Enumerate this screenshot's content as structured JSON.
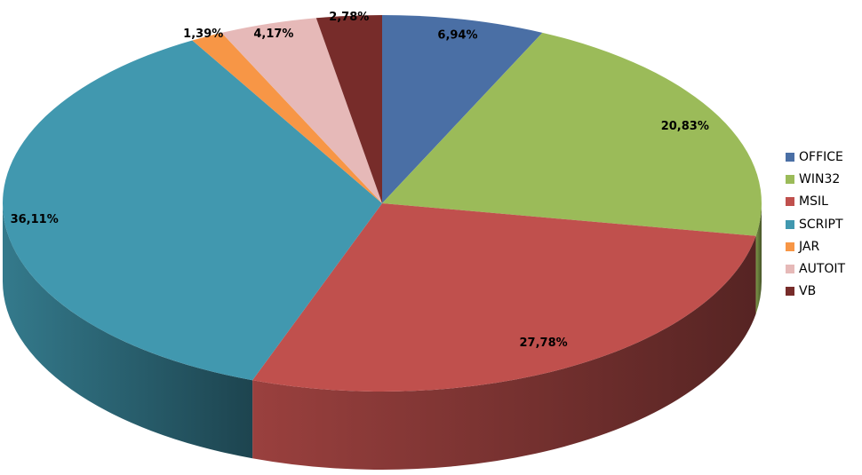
{
  "chart_data": {
    "type": "pie",
    "style": "3d",
    "title": "",
    "categories": [
      "OFFICE",
      "WIN32",
      "MSIL",
      "SCRIPT",
      "JAR",
      "AUTOIT",
      "VB"
    ],
    "values": [
      6.94,
      20.83,
      27.78,
      36.11,
      1.39,
      4.17,
      2.78
    ],
    "labels": [
      "6,94%",
      "20,83%",
      "27,78%",
      "36,11%",
      "1,39%",
      "4,17%",
      "2,78%"
    ],
    "colors": [
      "#4a6fa5",
      "#9bbb59",
      "#c0504d",
      "#4198af",
      "#f79646",
      "#e6b9b8",
      "#772c2a"
    ],
    "legend": "right"
  }
}
